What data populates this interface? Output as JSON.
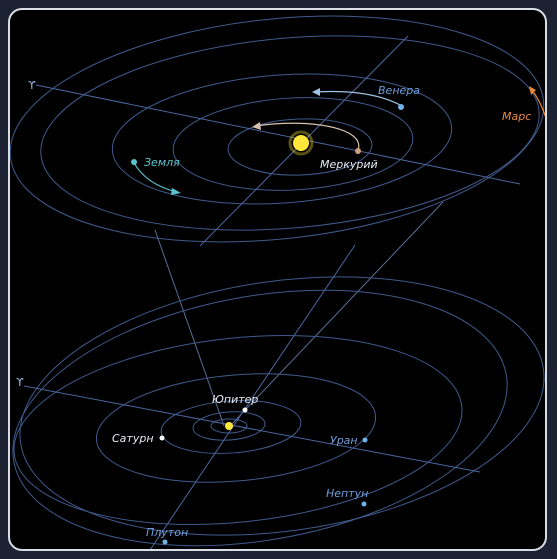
{
  "colors": {
    "background": "#000000",
    "frame": "#1c2232",
    "border": "#d9dde6",
    "orbit": "#3f5b8c",
    "axis": "#4a66a0",
    "label_blue": "#6f9fdc",
    "label_white": "#e8ecf2",
    "label_mars": "#e88a4a",
    "sun": "#ffe63a",
    "earth": "#59c4cf",
    "venus": "#6fb4e8",
    "mercury": "#cfa07c",
    "mars": "#e8883a"
  },
  "inner_system": {
    "vernal_symbol": "ϒ",
    "planets": {
      "venus": "Венера",
      "mars": "Марс",
      "earth": "Земля",
      "mercury": "Меркурий"
    }
  },
  "outer_system": {
    "vernal_symbol": "ϒ",
    "planets": {
      "jupiter": "Юпитер",
      "saturn": "Сатурн",
      "uranus": "Уран",
      "neptune": "Нептун",
      "pluto": "Плутон"
    }
  }
}
